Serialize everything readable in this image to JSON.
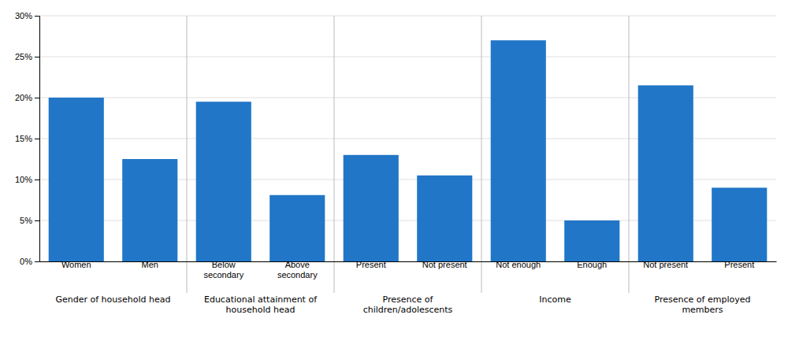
{
  "chart_data": {
    "type": "bar",
    "categories": [
      "Women",
      "Men",
      "Below\nsecondary",
      "Above\nsecondary",
      "Present",
      "Not present",
      "Not enough",
      "Enough",
      "Not present",
      "Present"
    ],
    "values": [
      20.0,
      12.5,
      19.5,
      8.1,
      13.0,
      10.5,
      27.0,
      5.0,
      21.5,
      9.0
    ],
    "color": "#2176c7",
    "ylim": [
      0,
      30
    ],
    "yticks": [
      {
        "value": 0,
        "label": "0%"
      },
      {
        "value": 5,
        "label": "5%"
      },
      {
        "value": 10,
        "label": "10%"
      },
      {
        "value": 15,
        "label": "15%"
      },
      {
        "value": 20,
        "label": "20%"
      },
      {
        "value": 25,
        "label": "25%"
      },
      {
        "value": 30,
        "label": "30%"
      }
    ],
    "grid": true,
    "groups": [
      {
        "label": "Gender of household head",
        "from": 0,
        "to": 1
      },
      {
        "label": "Educational attainment of\nhousehold head",
        "from": 2,
        "to": 3
      },
      {
        "label": "Presence of\nchildren/adolescents",
        "from": 4,
        "to": 5
      },
      {
        "label": "Income",
        "from": 6,
        "to": 7
      },
      {
        "label": "Presence of employed\nmembers",
        "from": 8,
        "to": 9
      }
    ]
  }
}
